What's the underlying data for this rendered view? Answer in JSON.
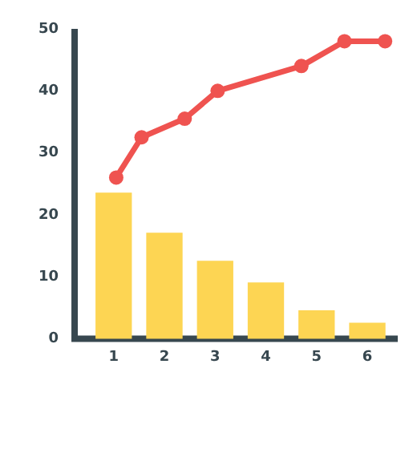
{
  "chart_data": {
    "type": "bar",
    "x": [
      1,
      2,
      3,
      4,
      5,
      6
    ],
    "xlim": [
      0.23,
      6.6
    ],
    "xticks": [
      1,
      2,
      3,
      4,
      5,
      6
    ],
    "ylim": [
      0,
      50
    ],
    "yticks": [
      0,
      10,
      20,
      30,
      40,
      50
    ],
    "marker": "circle",
    "line_style": "solid",
    "legend": false,
    "series": [
      {
        "color": "#fdd553",
        "values": [
          23.5,
          17,
          12.5,
          9,
          4.5,
          2.5
        ]
      },
      {
        "type": "line",
        "color": "#ef5350",
        "x": [
          1.05,
          1.55,
          2.4,
          3.05,
          4.7,
          5.55,
          6.35
        ],
        "values": [
          26,
          32.5,
          35.5,
          40,
          44,
          48,
          48
        ]
      }
    ]
  }
}
